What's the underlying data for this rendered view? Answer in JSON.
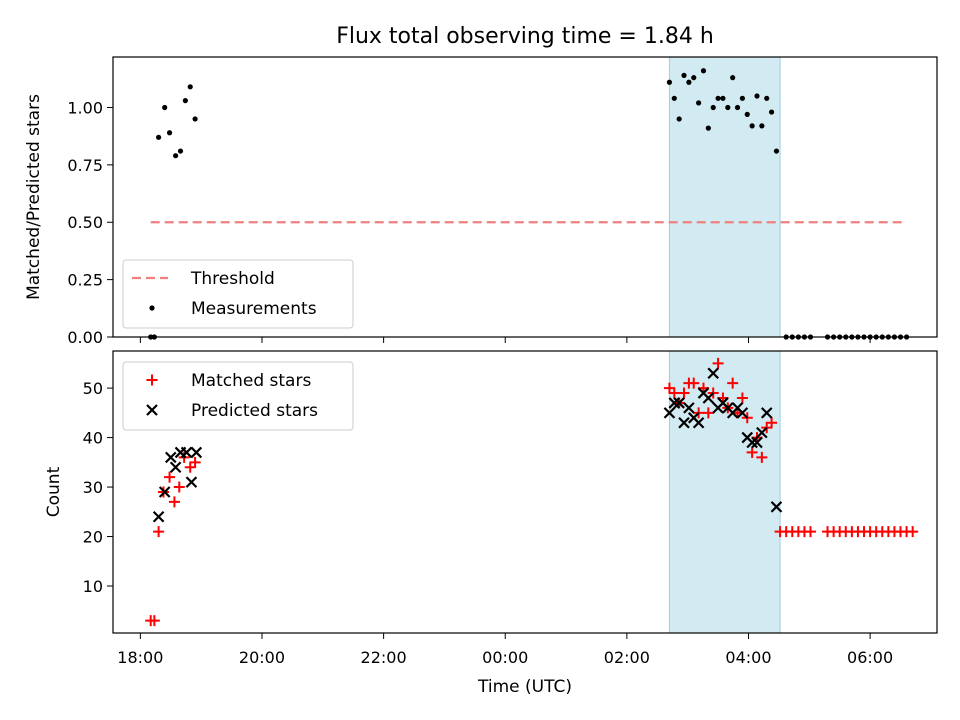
{
  "chart_data": {
    "type": "scatter",
    "title": "Flux total observing time = 1.84 h",
    "xlabel": "Time (UTC)",
    "x_axis": {
      "unit": "hours since 18:00 UTC",
      "range": [
        -0.45,
        13.1
      ],
      "ticks": [
        0,
        2,
        4,
        6,
        8,
        10,
        12
      ],
      "tick_labels": [
        "18:00",
        "20:00",
        "22:00",
        "00:00",
        "02:00",
        "04:00",
        "06:00"
      ]
    },
    "highlight_span": {
      "from": 8.7,
      "to": 10.52,
      "color": "#add8e6"
    },
    "panels": [
      {
        "name": "ratio",
        "ylabel": "Matched/Predicted stars",
        "ylim": [
          0,
          1.22
        ],
        "yticks": [
          0,
          0.25,
          0.5,
          0.75,
          1.0
        ],
        "ytick_labels": [
          "0.00",
          "0.25",
          "0.50",
          "0.75",
          "1.00"
        ],
        "legend": {
          "position": "lower-left",
          "entries": [
            "Threshold",
            "Measurements"
          ]
        },
        "series": [
          {
            "name": "Threshold",
            "kind": "dashed-line",
            "color": "#f08080",
            "points": [
              [
                0.17,
                0.5
              ],
              [
                12.58,
                0.5
              ]
            ]
          },
          {
            "name": "Measurements",
            "kind": "dot",
            "color": "#000000",
            "points": [
              [
                0.17,
                0.0
              ],
              [
                0.23,
                0.0
              ],
              [
                0.3,
                0.87
              ],
              [
                0.4,
                1.0
              ],
              [
                0.48,
                0.89
              ],
              [
                0.58,
                0.79
              ],
              [
                0.66,
                0.81
              ],
              [
                0.74,
                1.03
              ],
              [
                0.82,
                1.09
              ],
              [
                0.9,
                0.95
              ],
              [
                8.7,
                1.11
              ],
              [
                8.78,
                1.04
              ],
              [
                8.86,
                0.95
              ],
              [
                8.94,
                1.14
              ],
              [
                9.02,
                1.11
              ],
              [
                9.1,
                1.13
              ],
              [
                9.18,
                1.02
              ],
              [
                9.26,
                1.16
              ],
              [
                9.34,
                0.91
              ],
              [
                9.42,
                1.0
              ],
              [
                9.5,
                1.04
              ],
              [
                9.58,
                1.04
              ],
              [
                9.66,
                1.0
              ],
              [
                9.74,
                1.13
              ],
              [
                9.82,
                1.0
              ],
              [
                9.9,
                1.04
              ],
              [
                9.98,
                0.97
              ],
              [
                10.06,
                0.92
              ],
              [
                10.14,
                1.05
              ],
              [
                10.22,
                0.92
              ],
              [
                10.3,
                1.04
              ],
              [
                10.38,
                0.98
              ],
              [
                10.46,
                0.81
              ],
              [
                10.62,
                0.0
              ],
              [
                10.72,
                0.0
              ],
              [
                10.82,
                0.0
              ],
              [
                10.92,
                0.0
              ],
              [
                11.02,
                0.0
              ],
              [
                11.3,
                0.0
              ],
              [
                11.4,
                0.0
              ],
              [
                11.5,
                0.0
              ],
              [
                11.6,
                0.0
              ],
              [
                11.7,
                0.0
              ],
              [
                11.8,
                0.0
              ],
              [
                11.9,
                0.0
              ],
              [
                12.0,
                0.0
              ],
              [
                12.1,
                0.0
              ],
              [
                12.2,
                0.0
              ],
              [
                12.3,
                0.0
              ],
              [
                12.4,
                0.0
              ],
              [
                12.5,
                0.0
              ],
              [
                12.6,
                0.0
              ]
            ]
          }
        ]
      },
      {
        "name": "count",
        "ylabel": "Count",
        "ylim": [
          0.5,
          57.5
        ],
        "yticks": [
          10,
          20,
          30,
          40,
          50
        ],
        "ytick_labels": [
          "10",
          "20",
          "30",
          "40",
          "50"
        ],
        "legend": {
          "position": "upper-left",
          "entries": [
            "Matched stars",
            "Predicted stars"
          ]
        },
        "series": [
          {
            "name": "Matched stars",
            "kind": "plus",
            "color": "#ff0000",
            "points": [
              [
                0.17,
                3
              ],
              [
                0.23,
                3
              ],
              [
                0.3,
                21
              ],
              [
                0.38,
                29
              ],
              [
                0.48,
                32
              ],
              [
                0.56,
                27
              ],
              [
                0.64,
                30
              ],
              [
                0.72,
                36
              ],
              [
                0.82,
                34
              ],
              [
                0.9,
                35
              ],
              [
                8.7,
                50
              ],
              [
                8.78,
                49
              ],
              [
                8.86,
                47
              ],
              [
                8.94,
                49
              ],
              [
                9.02,
                51
              ],
              [
                9.1,
                51
              ],
              [
                9.18,
                45
              ],
              [
                9.26,
                50
              ],
              [
                9.34,
                45
              ],
              [
                9.42,
                49
              ],
              [
                9.5,
                55
              ],
              [
                9.58,
                48
              ],
              [
                9.66,
                46
              ],
              [
                9.74,
                51
              ],
              [
                9.82,
                45
              ],
              [
                9.9,
                48
              ],
              [
                9.98,
                44
              ],
              [
                10.06,
                37
              ],
              [
                10.14,
                40
              ],
              [
                10.22,
                36
              ],
              [
                10.3,
                42
              ],
              [
                10.38,
                43
              ],
              [
                10.52,
                21
              ],
              [
                10.62,
                21
              ],
              [
                10.72,
                21
              ],
              [
                10.82,
                21
              ],
              [
                10.92,
                21
              ],
              [
                11.02,
                21
              ],
              [
                11.3,
                21
              ],
              [
                11.4,
                21
              ],
              [
                11.5,
                21
              ],
              [
                11.6,
                21
              ],
              [
                11.7,
                21
              ],
              [
                11.8,
                21
              ],
              [
                11.9,
                21
              ],
              [
                12.0,
                21
              ],
              [
                12.1,
                21
              ],
              [
                12.2,
                21
              ],
              [
                12.3,
                21
              ],
              [
                12.4,
                21
              ],
              [
                12.5,
                21
              ],
              [
                12.6,
                21
              ],
              [
                12.7,
                21
              ]
            ]
          },
          {
            "name": "Predicted stars",
            "kind": "cross",
            "color": "#000000",
            "points": [
              [
                0.3,
                24
              ],
              [
                0.4,
                29
              ],
              [
                0.5,
                36
              ],
              [
                0.58,
                34
              ],
              [
                0.66,
                37
              ],
              [
                0.76,
                37
              ],
              [
                0.84,
                31
              ],
              [
                0.92,
                37
              ],
              [
                8.7,
                45
              ],
              [
                8.78,
                47
              ],
              [
                8.86,
                47
              ],
              [
                8.94,
                43
              ],
              [
                9.02,
                46
              ],
              [
                9.1,
                44
              ],
              [
                9.18,
                43
              ],
              [
                9.26,
                49
              ],
              [
                9.34,
                48
              ],
              [
                9.42,
                53
              ],
              [
                9.5,
                46
              ],
              [
                9.58,
                47
              ],
              [
                9.66,
                46
              ],
              [
                9.74,
                45
              ],
              [
                9.82,
                46
              ],
              [
                9.9,
                45
              ],
              [
                9.98,
                40
              ],
              [
                10.06,
                39
              ],
              [
                10.14,
                39
              ],
              [
                10.22,
                41
              ],
              [
                10.3,
                45
              ],
              [
                10.46,
                26
              ]
            ]
          }
        ]
      }
    ]
  }
}
